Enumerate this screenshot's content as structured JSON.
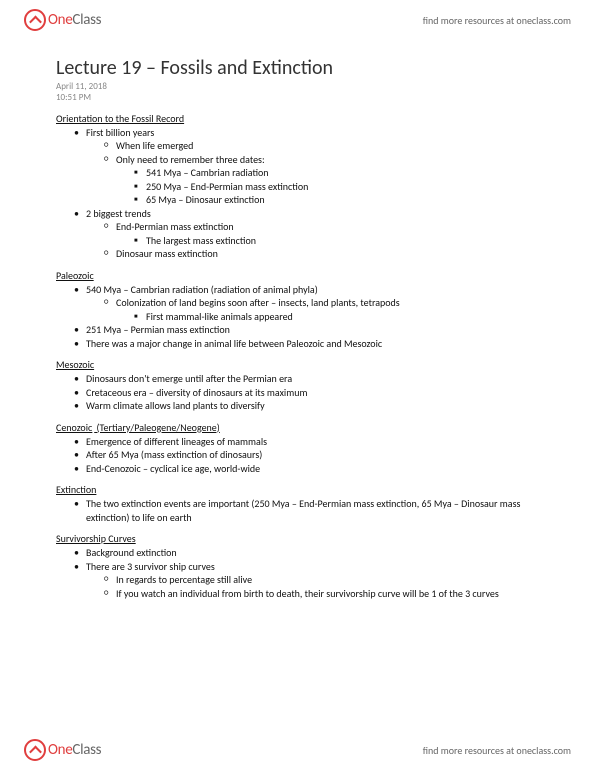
{
  "logo_one": "One",
  "logo_class": "Class",
  "header_link": "find more resources at oneclass.com",
  "title": "Lecture 19 – Fossils and Extinction",
  "date": "April 11, 2018",
  "time": "10:51 PM",
  "s1_head": "Orientation to the Fossil Record",
  "s1_l1a": "First billion years",
  "s1_l2a": "When life emerged",
  "s1_l2b": "Only need to remember three dates:",
  "s1_l3a": "541 Mya – Cambrian radiation",
  "s1_l3b": "250 Mya – End-Permian mass extinction",
  "s1_l3c": "65 Mya – Dinosaur extinction",
  "s1_l1b": "2 biggest trends",
  "s1_l2c": "End-Permian mass extinction",
  "s1_l3d": "The largest mass extinction",
  "s1_l2d": "Dinosaur mass extinction",
  "s2_head": "Paleozoic",
  "s2_l1a": "540 Mya – Cambrian radiation (radiation of animal phyla)",
  "s2_l2a": "Colonization of land begins soon after – insects, land plants, tetrapods",
  "s2_l3a": "First mammal-like animals appeared",
  "s2_l1b": "251 Mya – Permian mass extinction",
  "s2_l1c": "There was a major change in animal life between Paleozoic and Mesozoic",
  "s3_head": "Mesozoic",
  "s3_l1a": "Dinosaurs don't emerge until after the Permian era",
  "s3_l1b": "Cretaceous era – diversity of dinosaurs at its maximum",
  "s3_l1c": "Warm climate allows land plants to diversify",
  "s4_head_u": "Cenozoic",
  "s4_head_rest": " (Tertiary/Paleogene/Neogene)",
  "s4_l1a": "Emergence of different lineages of mammals",
  "s4_l1b": "After 65 Mya (mass extinction of dinosaurs)",
  "s4_l1c": "End-Cenozoic – cyclical ice age, world-wide",
  "s5_head": "Extinction",
  "s5_l1a": "The two extinction events are important (250 Mya – End-Permian mass extinction, 65 Mya – Dinosaur mass extinction) to life on earth",
  "s6_head": "Survivorship Curves",
  "s6_l1a": "Background extinction",
  "s6_l1b": "There are 3 survivor ship curves",
  "s6_l2a": "In regards to percentage still alive",
  "s6_l2b": "If you watch an individual from birth to death, their survivorship curve will be 1 of the 3 curves"
}
